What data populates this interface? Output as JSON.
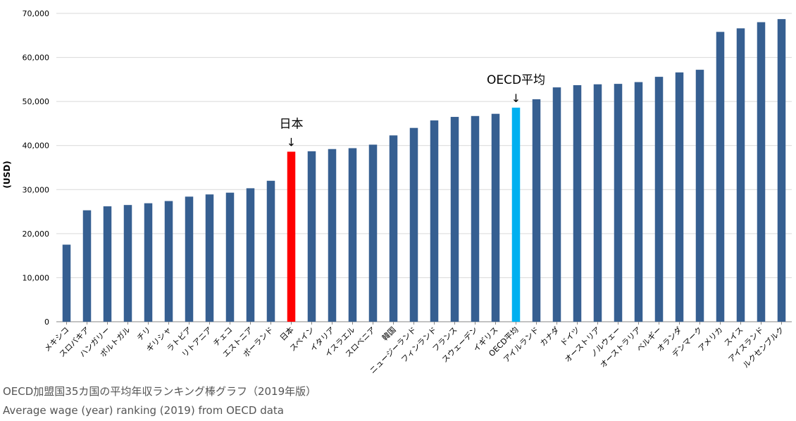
{
  "chart_data": {
    "type": "bar",
    "ylabel": "(USD)",
    "ylim": [
      0,
      70000
    ],
    "yticks": [
      "0",
      "10,000",
      "20,000",
      "30,000",
      "40,000",
      "50,000",
      "60,000",
      "70,000"
    ],
    "ytick_values": [
      0,
      10000,
      20000,
      30000,
      40000,
      50000,
      60000,
      70000
    ],
    "grid": "horizontal",
    "categories": [
      "メキシコ",
      "スロバキア",
      "ハンガリー",
      "ポルトガル",
      "チリ",
      "ギリシャ",
      "ラトビア",
      "リトアニア",
      "チェコ",
      "エストニア",
      "ポーランド",
      "日本",
      "スペイン",
      "イタリア",
      "イスラエル",
      "スロベニア",
      "韓国",
      "ニュージーランド",
      "フィンランド",
      "フランス",
      "スウェーデン",
      "イギリス",
      "OECD平均",
      "アイルランド",
      "カナダ",
      "ドイツ",
      "オーストリア",
      "ノルウェー",
      "オーストラリア",
      "ベルギー",
      "オランダ",
      "デンマーク",
      "アメリカ",
      "スイス",
      "アイスランド",
      "ルクセンブルク"
    ],
    "values": [
      17500,
      25300,
      26200,
      26500,
      26900,
      27400,
      28400,
      28900,
      29300,
      30300,
      32000,
      38600,
      38700,
      39200,
      39400,
      40200,
      42300,
      44000,
      45700,
      46500,
      46700,
      47200,
      48600,
      50500,
      53200,
      53700,
      53900,
      54000,
      54400,
      55600,
      56600,
      57200,
      65800,
      66600,
      68000,
      68700
    ],
    "colors": {
      "default": "#365f91",
      "highlight_japan": "#ff0000",
      "highlight_oecd": "#00b0f0",
      "grid": "#d9d9d9",
      "axis": "#868686",
      "text": "#000000"
    },
    "highlights": [
      {
        "category": "日本",
        "color_key": "highlight_japan"
      },
      {
        "category": "OECD平均",
        "color_key": "highlight_oecd"
      }
    ],
    "annotations": [
      {
        "text": "日本",
        "target": "日本",
        "arrow": "↓"
      },
      {
        "text": "OECD平均",
        "target": "OECD平均",
        "arrow": "↓"
      }
    ]
  },
  "captions": {
    "japanese": "OECD加盟国35カ国の平均年収ランキング棒グラフ（2019年版）",
    "english": "Average wage (year) ranking (2019) from OECD data"
  }
}
